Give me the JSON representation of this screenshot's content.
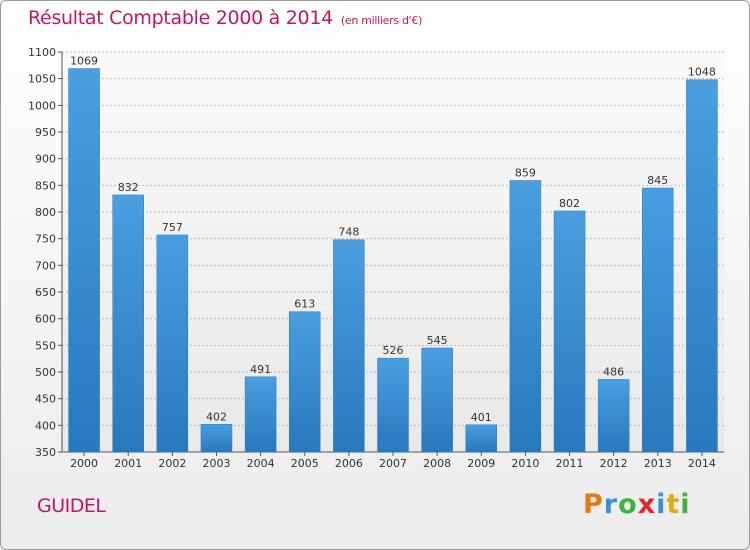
{
  "chart_data": {
    "type": "bar",
    "title": "Résultat Comptable 2000 à 2014",
    "unit_label": "(en milliers d'€)",
    "xlabel": "",
    "ylabel": "",
    "categories": [
      "2000",
      "2001",
      "2002",
      "2003",
      "2004",
      "2005",
      "2006",
      "2007",
      "2008",
      "2009",
      "2010",
      "2011",
      "2012",
      "2013",
      "2014"
    ],
    "values": [
      1069,
      832,
      757,
      402,
      491,
      613,
      748,
      526,
      545,
      401,
      859,
      802,
      486,
      845,
      1048
    ],
    "ylim": [
      350,
      1100
    ],
    "yticks": [
      350,
      400,
      450,
      500,
      550,
      600,
      650,
      700,
      750,
      800,
      850,
      900,
      950,
      1000,
      1050,
      1100
    ],
    "grid": true,
    "bar_color": "#4a9fe0",
    "bar_color_dark": "#2878bd"
  },
  "footer": {
    "city": "GUIDEL",
    "brand_letters": [
      "P",
      "r",
      "o",
      "x",
      "i",
      "t",
      "i"
    ],
    "brand_colors": [
      "#e07b12",
      "#3f8fd6",
      "#3fb13f",
      "#e0262a",
      "#3f8fd6",
      "#e0a812",
      "#3fb13f"
    ]
  },
  "colors": {
    "accent": "#c2185b",
    "grid": "#b8b8b8"
  }
}
